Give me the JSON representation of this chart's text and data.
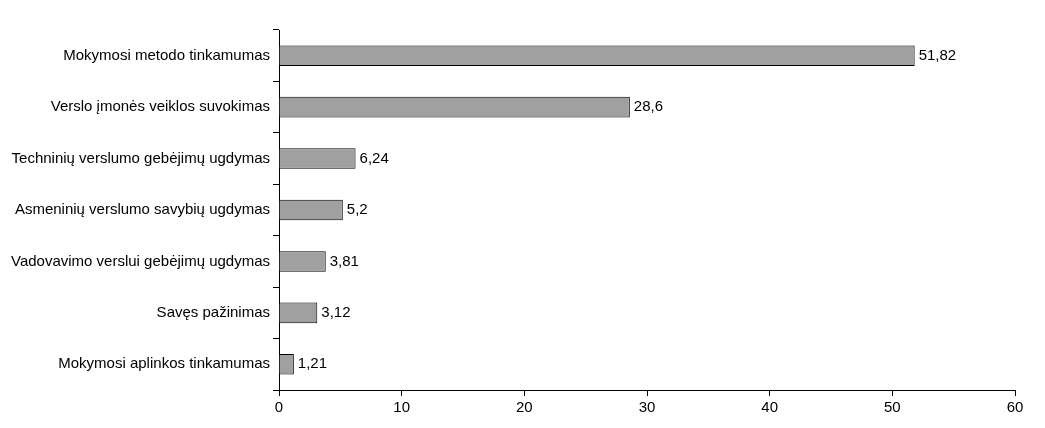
{
  "chart_data": {
    "type": "bar",
    "orientation": "horizontal",
    "categories": [
      "Mokymosi metodo tinkamumas",
      "Verslo įmonės veiklos suvokimas",
      "Techninių verslumo gebėjimų ugdymas",
      "Asmeninių verslumo savybių ugdymas",
      "Vadovavimo verslui gebėjimų ugdymas",
      "Savęs pažinimas",
      "Mokymosi aplinkos tinkamumas"
    ],
    "values": [
      51.82,
      28.6,
      6.24,
      5.2,
      3.81,
      3.12,
      1.21
    ],
    "value_labels": [
      "51,82",
      "28,6",
      "6,24",
      "5,2",
      "3,81",
      "3,12",
      "1,21"
    ],
    "color": "#a0a0a0",
    "xlim": [
      0,
      60
    ],
    "xticks": [
      0,
      10,
      20,
      30,
      40,
      50,
      60
    ],
    "grid": false,
    "legend": false
  }
}
